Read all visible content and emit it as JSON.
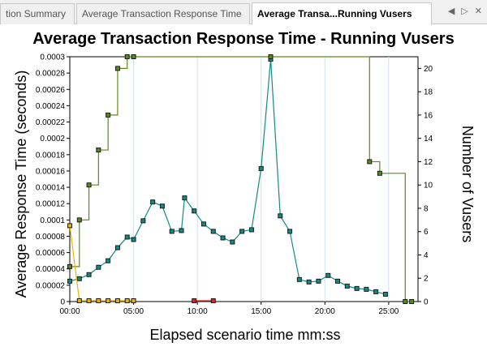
{
  "tabs": [
    {
      "label": "tion Summary",
      "active": false
    },
    {
      "label": "Average Transaction Response Time",
      "active": false
    },
    {
      "label": "Average Transa...Running Vusers",
      "active": true
    }
  ],
  "tab_controls": {
    "left_icon": "◀",
    "right_icon": "▷",
    "close_icon": "✕"
  },
  "colors": {
    "response_series": "#138a86",
    "vusers_series": "#5a8a1c",
    "transaction_series": "#e8b500",
    "red_series": "#e02020"
  },
  "chart_data": {
    "type": "line",
    "title": "Average Transaction Response Time - Running Vusers",
    "xlabel": "Elapsed scenario time mm:ss",
    "ylabel": "Average Response Time (seconds)",
    "y2label": "Number of Vusers",
    "xlim": [
      0,
      27.3
    ],
    "ylim": [
      0,
      0.0003
    ],
    "y2lim": [
      0,
      21
    ],
    "x_ticks": [
      0,
      5,
      10,
      15,
      20,
      25
    ],
    "x_tick_labels": [
      "00:00",
      "05:00",
      "10:00",
      "15:00",
      "20:00",
      "25:00"
    ],
    "y_ticks": [
      0,
      2e-05,
      4e-05,
      6e-05,
      8e-05,
      0.0001,
      0.00012,
      0.00014,
      0.00016,
      0.00018,
      0.0002,
      0.00022,
      0.00024,
      0.00026,
      0.00028,
      0.0003
    ],
    "y_tick_labels": [
      "0",
      "0.00002",
      "0.00004",
      "0.00006",
      "0.00008",
      "0.0001",
      "0.00012",
      "0.00014",
      "0.00016",
      "0.00018",
      "0.0002",
      "0.00022",
      "0.00024",
      "0.00026",
      "0.00028",
      "0.0003"
    ],
    "y2_ticks": [
      0,
      2,
      4,
      6,
      8,
      10,
      12,
      14,
      16,
      18,
      20
    ],
    "y2_tick_labels": [
      "0",
      "2",
      "4",
      "6",
      "8",
      "10",
      "12",
      "14",
      "16",
      "18",
      "20"
    ],
    "grid": "vertical",
    "series": [
      {
        "axis": "left",
        "color": "#138a86",
        "style": "line",
        "x": [
          0,
          0.75,
          1.5,
          2.25,
          3.0,
          3.75,
          4.5,
          5.0,
          5.75,
          6.5,
          7.25,
          8.0,
          8.75,
          9.0,
          9.75,
          10.5,
          11.25,
          12.0,
          12.75,
          13.5,
          14.25,
          15.0,
          15.75,
          16.5,
          17.25,
          18.0,
          18.75,
          19.5,
          20.25,
          21.0,
          21.75,
          22.5,
          23.25,
          24.0,
          24.75
        ],
        "y": [
          2.5e-05,
          2.8e-05,
          3.3e-05,
          4.2e-05,
          5e-05,
          6.6e-05,
          7.9e-05,
          7.6e-05,
          9.9e-05,
          0.000122,
          0.000117,
          8.6e-05,
          8.7e-05,
          0.000127,
          0.000111,
          9.5e-05,
          8.6e-05,
          7.8e-05,
          7.3e-05,
          8.6e-05,
          8.8e-05,
          0.000163,
          0.000297,
          0.000105,
          8.6e-05,
          2.7e-05,
          2.4e-05,
          2.5e-05,
          3.2e-05,
          2.5e-05,
          1.9e-05,
          1.6e-05,
          1.5e-05,
          1.2e-05,
          9e-06
        ]
      },
      {
        "axis": "right",
        "color": "#5a8a1c",
        "style": "step",
        "x": [
          0,
          0.75,
          1.5,
          2.25,
          3.0,
          3.75,
          4.5,
          5.0,
          15.75,
          23.5,
          24.3,
          26.3,
          26.8
        ],
        "y": [
          3,
          7,
          10,
          13,
          16,
          20,
          21,
          21,
          21,
          12,
          11,
          0,
          0
        ]
      },
      {
        "axis": "left",
        "color": "#e8b500",
        "style": "line",
        "x": [
          0,
          0.75,
          1.5,
          2.25,
          3.0,
          3.75,
          4.5,
          5.0
        ],
        "y": [
          9.3e-05,
          1e-06,
          1e-06,
          1e-06,
          1e-06,
          1e-06,
          1e-06,
          1e-06
        ]
      },
      {
        "axis": "left",
        "color": "#e02020",
        "style": "line",
        "x": [
          9.75,
          11.25
        ],
        "y": [
          1e-06,
          1e-06
        ]
      }
    ]
  }
}
